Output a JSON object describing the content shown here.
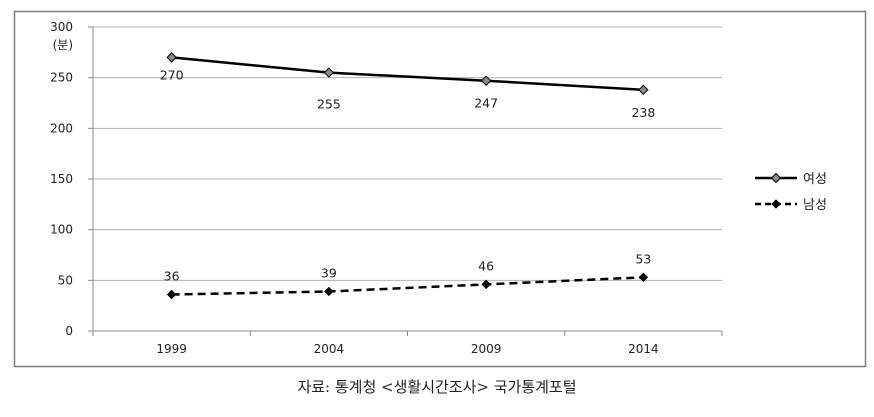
{
  "chart_data": {
    "type": "line",
    "categories": [
      "1999",
      "2004",
      "2009",
      "2014"
    ],
    "y_unit_label": "(분)",
    "ylim": [
      0,
      300
    ],
    "y_ticks": [
      0,
      50,
      100,
      150,
      200,
      250,
      300
    ],
    "grid": true,
    "legend_position": "right",
    "series": [
      {
        "name": "여성",
        "values": [
          270,
          255,
          247,
          238
        ],
        "style": "solid",
        "marker": "diamond-open",
        "color": "#000000"
      },
      {
        "name": "남성",
        "values": [
          36,
          39,
          46,
          53
        ],
        "style": "dashed",
        "marker": "diamond-filled",
        "color": "#000000"
      }
    ]
  },
  "source": "자료: 통계청 <생활시간조사> 국가통계포털",
  "colors": {
    "grid": "#b3b3b3",
    "frame": "#7f7f7f",
    "axis": "#888888"
  }
}
